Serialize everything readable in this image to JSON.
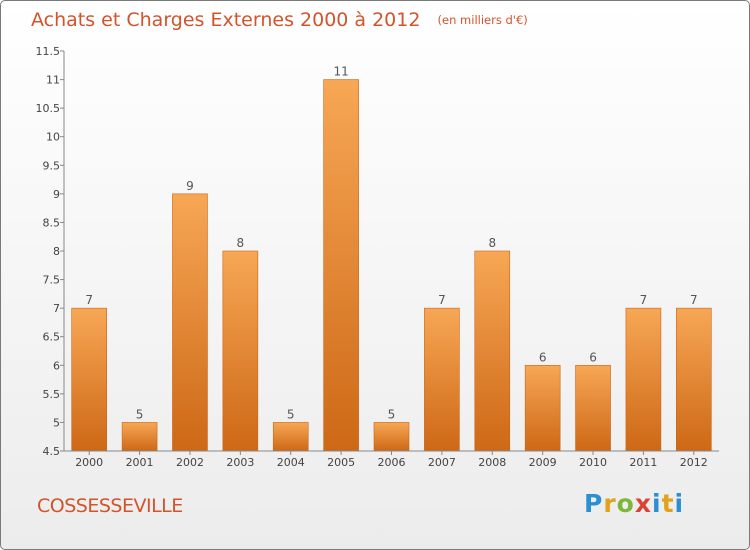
{
  "header": {
    "title": "Achats et Charges Externes 2000 à 2012",
    "subtitle": "(en milliers d'€)"
  },
  "footer": {
    "commune": "COSSESSEVILLE",
    "logo_text": "Proxiti"
  },
  "colors": {
    "title": "#d2542b",
    "bar_light": "#f6a552",
    "bar_dark": "#cf6a18"
  },
  "chart_data": {
    "type": "bar",
    "categories": [
      "2000",
      "2001",
      "2002",
      "2003",
      "2004",
      "2005",
      "2006",
      "2007",
      "2008",
      "2009",
      "2010",
      "2011",
      "2012"
    ],
    "values": [
      7,
      5,
      9,
      8,
      5,
      11,
      5,
      7,
      8,
      6,
      6,
      7,
      7
    ],
    "data_labels": [
      "7",
      "5",
      "9",
      "8",
      "5",
      "11",
      "5",
      "7",
      "8",
      "6",
      "6",
      "7",
      "7"
    ],
    "y_ticks": [
      "4.5",
      "5",
      "5.5",
      "6",
      "6.5",
      "7",
      "7.5",
      "8",
      "8.5",
      "9",
      "9.5",
      "10",
      "10.5",
      "11",
      "11.5"
    ],
    "ylim": [
      4.5,
      11.5
    ],
    "grid": false,
    "legend": "none"
  }
}
